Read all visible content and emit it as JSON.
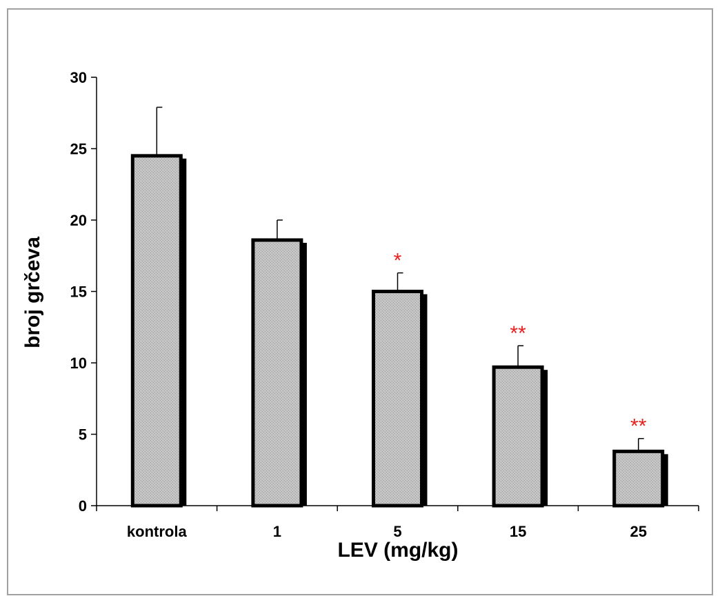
{
  "chart_data": {
    "type": "bar",
    "title": "",
    "xlabel": "LEV (mg/kg)",
    "ylabel": "broj grčeva",
    "categories": [
      "kontrola",
      "1",
      "5",
      "15",
      "25"
    ],
    "values": [
      24.5,
      18.6,
      15.0,
      9.7,
      3.8
    ],
    "errors": [
      3.4,
      1.4,
      1.3,
      1.5,
      0.9
    ],
    "significance": [
      "",
      "",
      "*",
      "**",
      "**"
    ],
    "ylim": [
      0,
      30
    ],
    "yticks": [
      "0",
      "5",
      "10",
      "15",
      "20",
      "25",
      "30"
    ],
    "grid": false,
    "legend": "none",
    "colors": {
      "bar_fill": "#c4c4c4",
      "bar_border": "#000000",
      "bar_shadow": "#000000",
      "significance": "#e8201e",
      "frame": "#a0a0a0",
      "axis": "#000000"
    }
  }
}
